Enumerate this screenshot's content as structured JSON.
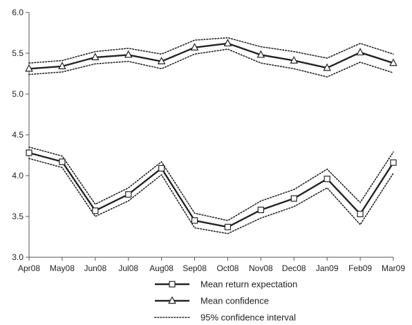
{
  "chart_data": {
    "type": "line",
    "categories": [
      "Apr08",
      "May08",
      "Jun08",
      "Jul08",
      "Aug08",
      "Sep08",
      "Oct08",
      "Nov08",
      "Dec08",
      "Jan09",
      "Feb09",
      "Mar09"
    ],
    "ylim": [
      3.0,
      6.0
    ],
    "yticks": [
      "3.0",
      "3.5",
      "4.0",
      "4.5",
      "5.0",
      "5.5",
      "6.0"
    ],
    "grid": false,
    "legend_position": "bottom",
    "series": [
      {
        "name": "Mean return expectation",
        "marker": "square",
        "style": "solid",
        "color": "#222222",
        "values": [
          4.28,
          4.17,
          3.57,
          3.77,
          4.09,
          3.45,
          3.37,
          3.58,
          3.72,
          3.96,
          3.53,
          4.16
        ],
        "ci_lower": [
          4.21,
          4.1,
          3.5,
          3.69,
          4.01,
          3.36,
          3.29,
          3.48,
          3.62,
          3.85,
          3.4,
          4.03
        ],
        "ci_upper": [
          4.35,
          4.24,
          3.65,
          3.85,
          4.17,
          3.54,
          3.45,
          3.69,
          3.83,
          4.08,
          3.67,
          4.29
        ]
      },
      {
        "name": "Mean confidence",
        "marker": "triangle",
        "style": "solid",
        "color": "#222222",
        "values": [
          5.31,
          5.34,
          5.45,
          5.48,
          5.4,
          5.57,
          5.62,
          5.48,
          5.41,
          5.32,
          5.51,
          5.38
        ],
        "ci_lower": [
          5.24,
          5.27,
          5.37,
          5.4,
          5.31,
          5.49,
          5.55,
          5.38,
          5.31,
          5.21,
          5.39,
          5.26
        ],
        "ci_upper": [
          5.38,
          5.41,
          5.52,
          5.56,
          5.49,
          5.66,
          5.69,
          5.58,
          5.52,
          5.44,
          5.62,
          5.49
        ]
      }
    ],
    "legend": [
      {
        "label": "Mean return expectation",
        "marker": "square",
        "style": "solid"
      },
      {
        "label": "Mean confidence",
        "marker": "triangle",
        "style": "solid"
      },
      {
        "label": "95% confidence interval",
        "marker": "none",
        "style": "dotted"
      }
    ]
  }
}
